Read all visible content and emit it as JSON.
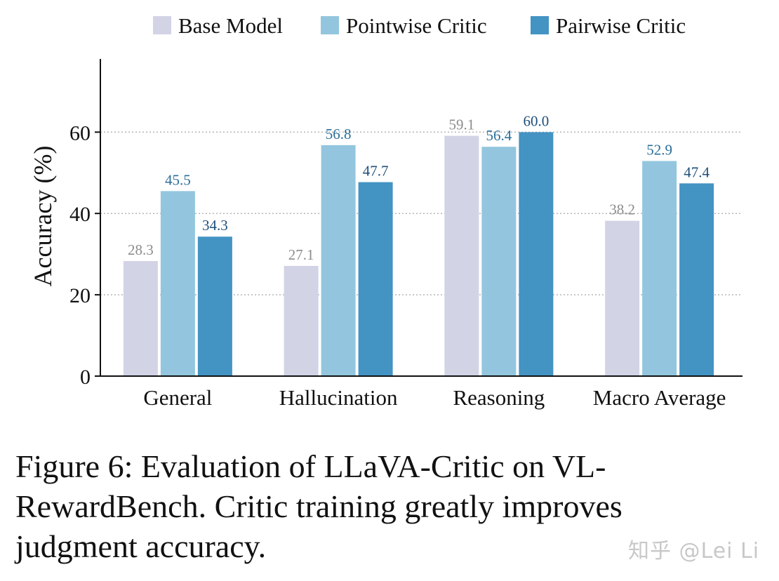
{
  "chart_data": {
    "type": "bar",
    "categories": [
      "General",
      "Hallucination",
      "Reasoning",
      "Macro Average"
    ],
    "series": [
      {
        "name": "Base Model",
        "color": "#d3d3e6",
        "label_color": "#8c8c8c",
        "values": [
          28.3,
          27.1,
          59.1,
          38.2
        ],
        "labels": [
          "28.3",
          "27.1",
          "59.1",
          "38.2"
        ]
      },
      {
        "name": "Pointwise Critic",
        "color": "#93c6de",
        "label_color": "#2b6e9a",
        "values": [
          45.5,
          56.8,
          56.4,
          52.9
        ],
        "labels": [
          "45.5",
          "56.8",
          "56.4",
          "52.9"
        ]
      },
      {
        "name": "Pairwise Critic",
        "color": "#4393c3",
        "label_color": "#1f4f7a",
        "values": [
          34.3,
          47.7,
          60.0,
          47.4
        ],
        "labels": [
          "34.3",
          "47.7",
          "60.0",
          "47.4"
        ]
      }
    ],
    "xlabel": "",
    "ylabel": "Accuracy (%)",
    "ylim": [
      0,
      78
    ],
    "yticks": [
      0,
      20,
      40,
      60
    ],
    "ytick_labels": [
      "0",
      "20",
      "40",
      "60"
    ],
    "grid": "horizontal-dotted",
    "legend": "top"
  },
  "caption": {
    "line1": "Figure 6:  Evaluation of LLaVA-Critic on VL-",
    "line2": "RewardBench.  Critic training greatly improves",
    "line3": "judgment accuracy."
  },
  "watermark": "知乎 @Lei Li"
}
